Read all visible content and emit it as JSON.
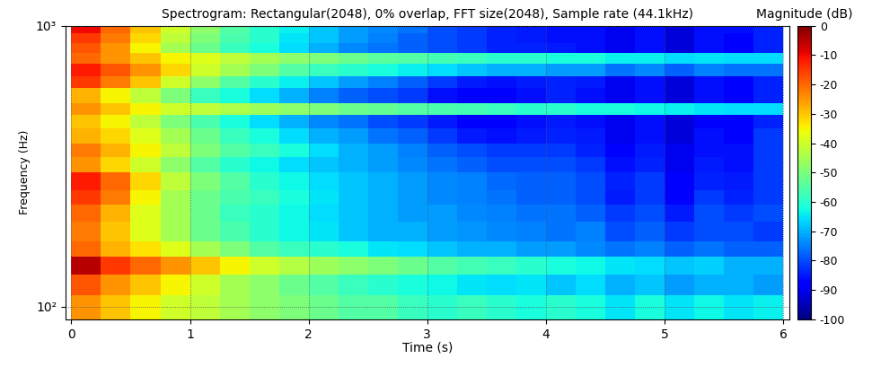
{
  "chart_data": {
    "type": "heatmap",
    "title": "Spectrogram: Rectangular(2048), 0% overlap, FFT size(2048), Sample rate (44.1kHz)",
    "x_label": "Time (s)",
    "y_label": "Frequency (Hz)",
    "x_edges": [
      0.0,
      0.25,
      0.5,
      0.75,
      1.0,
      1.25,
      1.5,
      1.75,
      2.0,
      2.25,
      2.5,
      2.75,
      3.0,
      3.25,
      3.5,
      3.75,
      4.0,
      4.25,
      4.5,
      4.75,
      5.0,
      5.25,
      5.5,
      5.75,
      6.0
    ],
    "y_edges": [
      90,
      110,
      130,
      150,
      170,
      200,
      230,
      260,
      300,
      340,
      380,
      430,
      480,
      530,
      600,
      660,
      730,
      800,
      870,
      940,
      1000
    ],
    "cells": [
      [
        -25,
        -30,
        -35,
        -40,
        -42,
        -45,
        -48,
        -50,
        -52,
        -55,
        -55,
        -58,
        -60,
        -58,
        -60,
        -62,
        -60,
        -62,
        -65,
        -62,
        -65,
        -63,
        -65,
        -64
      ],
      [
        -18,
        -25,
        -30,
        -35,
        -40,
        -45,
        -48,
        -52,
        -55,
        -58,
        -60,
        -62,
        -63,
        -65,
        -66,
        -65,
        -68,
        -66,
        -70,
        -68,
        -72,
        -70,
        -70,
        -72
      ],
      [
        -5,
        -15,
        -20,
        -25,
        -30,
        -35,
        -40,
        -43,
        -46,
        -48,
        -50,
        -52,
        -55,
        -57,
        -58,
        -60,
        -62,
        -63,
        -65,
        -66,
        -68,
        -67,
        -70,
        -70
      ],
      [
        -20,
        -28,
        -33,
        -38,
        -45,
        -50,
        -55,
        -58,
        -60,
        -62,
        -65,
        -66,
        -68,
        -70,
        -70,
        -72,
        -72,
        -74,
        -76,
        -75,
        -78,
        -76,
        -78,
        -78
      ],
      [
        -22,
        -30,
        -38,
        -45,
        -52,
        -56,
        -60,
        -63,
        -65,
        -68,
        -70,
        -70,
        -72,
        -73,
        -74,
        -75,
        -76,
        -75,
        -80,
        -78,
        -82,
        -80,
        -80,
        -82
      ],
      [
        -20,
        -28,
        -38,
        -45,
        -52,
        -58,
        -60,
        -63,
        -66,
        -68,
        -70,
        -72,
        -72,
        -74,
        -75,
        -76,
        -76,
        -78,
        -82,
        -80,
        -85,
        -80,
        -82,
        -80
      ],
      [
        -15,
        -22,
        -35,
        -45,
        -52,
        -56,
        -58,
        -62,
        -65,
        -68,
        -70,
        -72,
        -74,
        -75,
        -76,
        -78,
        -78,
        -80,
        -85,
        -82,
        -88,
        -82,
        -84,
        -82
      ],
      [
        -12,
        -20,
        -32,
        -42,
        -50,
        -55,
        -60,
        -63,
        -66,
        -68,
        -70,
        -72,
        -74,
        -75,
        -77,
        -78,
        -78,
        -80,
        -84,
        -82,
        -88,
        -84,
        -85,
        -82
      ],
      [
        -25,
        -32,
        -40,
        -48,
        -55,
        -60,
        -63,
        -66,
        -68,
        -70,
        -72,
        -74,
        -76,
        -78,
        -80,
        -80,
        -80,
        -82,
        -86,
        -84,
        -90,
        -85,
        -86,
        -82
      ],
      [
        -22,
        -28,
        -35,
        -42,
        -50,
        -55,
        -58,
        -62,
        -66,
        -70,
        -72,
        -75,
        -78,
        -80,
        -82,
        -82,
        -82,
        -84,
        -88,
        -85,
        -90,
        -86,
        -86,
        -82
      ],
      [
        -28,
        -32,
        -38,
        -45,
        -52,
        -58,
        -62,
        -66,
        -70,
        -72,
        -76,
        -78,
        -82,
        -85,
        -86,
        -85,
        -84,
        -85,
        -90,
        -86,
        -92,
        -86,
        -88,
        -82
      ],
      [
        -30,
        -35,
        -42,
        -50,
        -56,
        -62,
        -66,
        -70,
        -74,
        -76,
        -80,
        -82,
        -85,
        -88,
        -88,
        -86,
        -85,
        -86,
        -90,
        -86,
        -92,
        -88,
        -88,
        -84
      ],
      [
        -25,
        -30,
        -35,
        -40,
        -42,
        -44,
        -46,
        -48,
        -50,
        -52,
        -53,
        -55,
        -56,
        -57,
        -58,
        -60,
        -60,
        -62,
        -62,
        -63,
        -64,
        -65,
        -66,
        -66
      ],
      [
        -28,
        -35,
        -42,
        -50,
        -58,
        -62,
        -66,
        -70,
        -75,
        -78,
        -80,
        -82,
        -86,
        -88,
        -88,
        -86,
        -84,
        -86,
        -90,
        -86,
        -92,
        -86,
        -88,
        -84
      ],
      [
        -15,
        -22,
        -30,
        -40,
        -48,
        -55,
        -60,
        -64,
        -68,
        -72,
        -75,
        -78,
        -82,
        -85,
        -86,
        -85,
        -84,
        -85,
        -90,
        -86,
        -92,
        -86,
        -88,
        -84
      ],
      [
        -12,
        -18,
        -25,
        -32,
        -40,
        -45,
        -50,
        -55,
        -58,
        -60,
        -62,
        -64,
        -66,
        -68,
        -70,
        -70,
        -72,
        -72,
        -76,
        -74,
        -78,
        -75,
        -76,
        -76
      ],
      [
        -20,
        -25,
        -30,
        -35,
        -38,
        -42,
        -45,
        -48,
        -50,
        -52,
        -54,
        -55,
        -57,
        -58,
        -60,
        -60,
        -62,
        -62,
        -64,
        -64,
        -66,
        -65,
        -66,
        -66
      ],
      [
        -18,
        -25,
        -35,
        -45,
        -52,
        -58,
        -62,
        -66,
        -70,
        -74,
        -76,
        -78,
        -80,
        -82,
        -84,
        -84,
        -85,
        -86,
        -90,
        -86,
        -92,
        -86,
        -88,
        -84
      ],
      [
        -15,
        -22,
        -32,
        -42,
        -50,
        -56,
        -60,
        -65,
        -68,
        -72,
        -75,
        -78,
        -80,
        -82,
        -84,
        -85,
        -86,
        -86,
        -90,
        -86,
        -92,
        -86,
        -88,
        -84
      ],
      [
        -10,
        -20,
        -30,
        -40,
        -48,
        -55,
        -60,
        -64,
        -68,
        -72,
        -74,
        -76,
        -80,
        -82,
        -84,
        -85,
        -86,
        -86,
        -90,
        -86,
        -92,
        -86,
        -86,
        -84
      ]
    ],
    "xlim": [
      -0.05,
      6.05
    ],
    "ylim": [
      90,
      1000
    ],
    "xticks": [
      0,
      1,
      2,
      3,
      4,
      5,
      6
    ],
    "yticks": [
      {
        "value": 100,
        "label": "10²"
      },
      {
        "value": 1000,
        "label": "10³"
      }
    ],
    "log": "y",
    "grid": true,
    "color": "jet",
    "colorbar": {
      "label": "Magnitude (dB)",
      "range": [
        -100,
        0
      ],
      "ticks": [
        0,
        -10,
        -20,
        -30,
        -40,
        -50,
        -60,
        -70,
        -80,
        -90,
        -100
      ]
    }
  }
}
